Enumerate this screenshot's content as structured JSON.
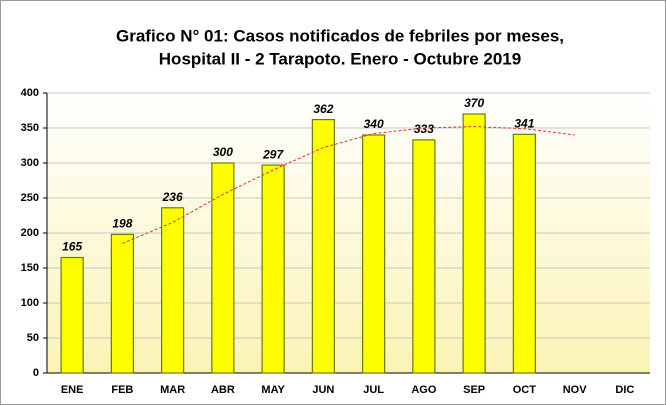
{
  "chart_data": {
    "type": "bar",
    "title": [
      "Grafico N° 01: Casos notificados de febriles por meses,",
      "Hospital II - 2 Tarapoto. Enero - Octubre 2019"
    ],
    "categories": [
      "ENE",
      "FEB",
      "MAR",
      "ABR",
      "MAY",
      "JUN",
      "JUL",
      "AGO",
      "SEP",
      "OCT",
      "NOV",
      "DIC"
    ],
    "values": [
      165,
      198,
      236,
      300,
      297,
      362,
      340,
      333,
      370,
      341,
      null,
      null
    ],
    "color": "#ffff00",
    "trend": {
      "color": "#e03030",
      "values": [
        null,
        185,
        215,
        255,
        290,
        322,
        342,
        350,
        352,
        349,
        340,
        null
      ]
    },
    "ylim": [
      0,
      400
    ],
    "yticks": [
      0,
      50,
      100,
      150,
      200,
      250,
      300,
      350,
      400
    ],
    "grid": true
  }
}
